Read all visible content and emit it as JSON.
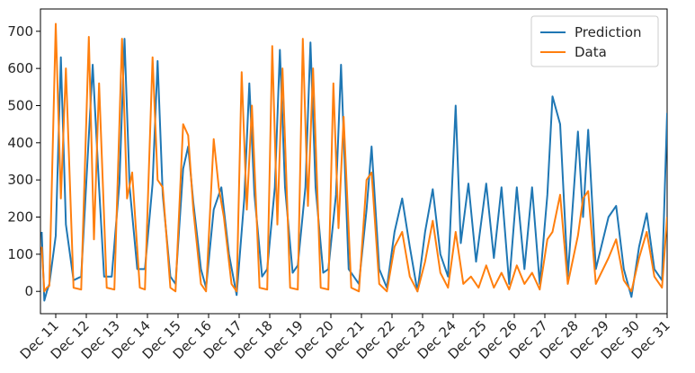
{
  "chart_data": {
    "type": "line",
    "title": "",
    "xlabel": "",
    "ylabel": "",
    "grid": false,
    "legend_position": "upper right",
    "x_range": [
      "Dec 10 12:00",
      "Dec 31 00:00"
    ],
    "ylim": [
      -60,
      760
    ],
    "x_tick_labels": [
      "Dec 11",
      "Dec 12",
      "Dec 13",
      "Dec 14",
      "Dec 15",
      "Dec 16",
      "Dec 17",
      "Dec 18",
      "Dec 19",
      "Dec 20",
      "Dec 21",
      "Dec 22",
      "Dec 23",
      "Dec 24",
      "Dec 25",
      "Dec 26",
      "Dec 27",
      "Dec 28",
      "Dec 29",
      "Dec 30",
      "Dec 31"
    ],
    "y_ticks": [
      0,
      100,
      200,
      300,
      400,
      500,
      600,
      700
    ],
    "series": [
      {
        "name": "Prediction",
        "color": "#1f77b4",
        "values": [
          [
            "Dec 10 13:00",
            160
          ],
          [
            "Dec 10 15:00",
            -25
          ],
          [
            "Dec 10 17:00",
            0
          ],
          [
            "Dec 10 19:00",
            20
          ],
          [
            "Dec 11 00:00",
            150
          ],
          [
            "Dec 11 04:00",
            630
          ],
          [
            "Dec 11 08:00",
            180
          ],
          [
            "Dec 11 14:00",
            30
          ],
          [
            "Dec 11 20:00",
            40
          ],
          [
            "Dec 12 05:00",
            610
          ],
          [
            "Dec 12 10:00",
            280
          ],
          [
            "Dec 12 14:00",
            40
          ],
          [
            "Dec 12 20:00",
            40
          ],
          [
            "Dec 13 02:00",
            290
          ],
          [
            "Dec 13 06:00",
            680
          ],
          [
            "Dec 13 10:00",
            280
          ],
          [
            "Dec 13 16:00",
            60
          ],
          [
            "Dec 13 22:00",
            60
          ],
          [
            "Dec 14 04:00",
            290
          ],
          [
            "Dec 14 08:00",
            620
          ],
          [
            "Dec 14 12:00",
            260
          ],
          [
            "Dec 14 18:00",
            40
          ],
          [
            "Dec 14 22:00",
            20
          ],
          [
            "Dec 15 04:00",
            330
          ],
          [
            "Dec 15 08:00",
            390
          ],
          [
            "Dec 15 12:00",
            240
          ],
          [
            "Dec 15 18:00",
            60
          ],
          [
            "Dec 15 22:00",
            10
          ],
          [
            "Dec 16 04:00",
            220
          ],
          [
            "Dec 16 10:00",
            280
          ],
          [
            "Dec 16 16:00",
            100
          ],
          [
            "Dec 16 22:00",
            -10
          ],
          [
            "Dec 17 04:00",
            250
          ],
          [
            "Dec 17 08:00",
            560
          ],
          [
            "Dec 17 12:00",
            260
          ],
          [
            "Dec 17 18:00",
            40
          ],
          [
            "Dec 17 22:00",
            60
          ],
          [
            "Dec 18 04:00",
            280
          ],
          [
            "Dec 18 08:00",
            650
          ],
          [
            "Dec 18 12:00",
            280
          ],
          [
            "Dec 18 18:00",
            50
          ],
          [
            "Dec 18 22:00",
            70
          ],
          [
            "Dec 19 04:00",
            280
          ],
          [
            "Dec 19 08:00",
            670
          ],
          [
            "Dec 19 12:00",
            280
          ],
          [
            "Dec 19 18:00",
            50
          ],
          [
            "Dec 19 22:00",
            60
          ],
          [
            "Dec 20 04:00",
            260
          ],
          [
            "Dec 20 08:00",
            610
          ],
          [
            "Dec 20 14:00",
            60
          ],
          [
            "Dec 20 22:00",
            20
          ],
          [
            "Dec 21 04:00",
            220
          ],
          [
            "Dec 21 08:00",
            390
          ],
          [
            "Dec 21 14:00",
            60
          ],
          [
            "Dec 21 20:00",
            10
          ],
          [
            "Dec 22 02:00",
            160
          ],
          [
            "Dec 22 08:00",
            250
          ],
          [
            "Dec 22 14:00",
            120
          ],
          [
            "Dec 22 20:00",
            0
          ],
          [
            "Dec 23 02:00",
            160
          ],
          [
            "Dec 23 08:00",
            275
          ],
          [
            "Dec 23 14:00",
            100
          ],
          [
            "Dec 23 20:00",
            40
          ],
          [
            "Dec 24 02:00",
            500
          ],
          [
            "Dec 24 06:00",
            130
          ],
          [
            "Dec 24 12:00",
            290
          ],
          [
            "Dec 24 18:00",
            80
          ],
          [
            "Dec 25 02:00",
            290
          ],
          [
            "Dec 25 08:00",
            90
          ],
          [
            "Dec 25 14:00",
            280
          ],
          [
            "Dec 25 20:00",
            20
          ],
          [
            "Dec 26 02:00",
            280
          ],
          [
            "Dec 26 08:00",
            60
          ],
          [
            "Dec 26 14:00",
            280
          ],
          [
            "Dec 26 20:00",
            20
          ],
          [
            "Dec 27 02:00",
            260
          ],
          [
            "Dec 27 06:00",
            525
          ],
          [
            "Dec 27 12:00",
            450
          ],
          [
            "Dec 27 18:00",
            40
          ],
          [
            "Dec 28 02:00",
            430
          ],
          [
            "Dec 28 06:00",
            200
          ],
          [
            "Dec 28 10:00",
            435
          ],
          [
            "Dec 28 16:00",
            60
          ],
          [
            "Dec 29 02:00",
            200
          ],
          [
            "Dec 29 08:00",
            230
          ],
          [
            "Dec 29 14:00",
            60
          ],
          [
            "Dec 29 20:00",
            -15
          ],
          [
            "Dec 30 02:00",
            120
          ],
          [
            "Dec 30 08:00",
            210
          ],
          [
            "Dec 30 14:00",
            60
          ],
          [
            "Dec 30 20:00",
            30
          ],
          [
            "Dec 31 00:00",
            480
          ]
        ]
      },
      {
        "name": "Data",
        "color": "#ff7f0e",
        "values": [
          [
            "Dec 10 13:00",
            120
          ],
          [
            "Dec 10 15:00",
            0
          ],
          [
            "Dec 10 17:00",
            10
          ],
          [
            "Dec 10 19:00",
            15
          ],
          [
            "Dec 11 00:00",
            720
          ],
          [
            "Dec 11 04:00",
            250
          ],
          [
            "Dec 11 08:00",
            600
          ],
          [
            "Dec 11 14:00",
            10
          ],
          [
            "Dec 11 20:00",
            5
          ],
          [
            "Dec 12 02:00",
            685
          ],
          [
            "Dec 12 06:00",
            140
          ],
          [
            "Dec 12 10:00",
            560
          ],
          [
            "Dec 12 16:00",
            10
          ],
          [
            "Dec 12 22:00",
            5
          ],
          [
            "Dec 13 04:00",
            680
          ],
          [
            "Dec 13 08:00",
            250
          ],
          [
            "Dec 13 12:00",
            320
          ],
          [
            "Dec 13 18:00",
            10
          ],
          [
            "Dec 13 22:00",
            5
          ],
          [
            "Dec 14 04:00",
            630
          ],
          [
            "Dec 14 08:00",
            300
          ],
          [
            "Dec 14 12:00",
            280
          ],
          [
            "Dec 14 18:00",
            10
          ],
          [
            "Dec 14 22:00",
            0
          ],
          [
            "Dec 15 04:00",
            450
          ],
          [
            "Dec 15 08:00",
            420
          ],
          [
            "Dec 15 12:00",
            220
          ],
          [
            "Dec 15 18:00",
            20
          ],
          [
            "Dec 15 22:00",
            0
          ],
          [
            "Dec 16 04:00",
            410
          ],
          [
            "Dec 16 08:00",
            280
          ],
          [
            "Dec 16 12:00",
            200
          ],
          [
            "Dec 16 18:00",
            20
          ],
          [
            "Dec 16 22:00",
            0
          ],
          [
            "Dec 17 02:00",
            590
          ],
          [
            "Dec 17 06:00",
            220
          ],
          [
            "Dec 17 10:00",
            500
          ],
          [
            "Dec 17 16:00",
            10
          ],
          [
            "Dec 17 22:00",
            5
          ],
          [
            "Dec 18 02:00",
            660
          ],
          [
            "Dec 18 06:00",
            180
          ],
          [
            "Dec 18 10:00",
            600
          ],
          [
            "Dec 18 16:00",
            10
          ],
          [
            "Dec 18 22:00",
            5
          ],
          [
            "Dec 19 02:00",
            680
          ],
          [
            "Dec 19 06:00",
            230
          ],
          [
            "Dec 19 10:00",
            600
          ],
          [
            "Dec 19 16:00",
            10
          ],
          [
            "Dec 19 22:00",
            5
          ],
          [
            "Dec 20 02:00",
            560
          ],
          [
            "Dec 20 06:00",
            170
          ],
          [
            "Dec 20 10:00",
            470
          ],
          [
            "Dec 20 16:00",
            10
          ],
          [
            "Dec 20 22:00",
            0
          ],
          [
            "Dec 21 04:00",
            300
          ],
          [
            "Dec 21 08:00",
            320
          ],
          [
            "Dec 21 14:00",
            20
          ],
          [
            "Dec 21 20:00",
            0
          ],
          [
            "Dec 22 02:00",
            120
          ],
          [
            "Dec 22 08:00",
            160
          ],
          [
            "Dec 22 14:00",
            40
          ],
          [
            "Dec 22 20:00",
            0
          ],
          [
            "Dec 23 02:00",
            80
          ],
          [
            "Dec 23 08:00",
            190
          ],
          [
            "Dec 23 14:00",
            50
          ],
          [
            "Dec 23 20:00",
            10
          ],
          [
            "Dec 24 02:00",
            160
          ],
          [
            "Dec 24 08:00",
            20
          ],
          [
            "Dec 24 14:00",
            40
          ],
          [
            "Dec 24 20:00",
            10
          ],
          [
            "Dec 25 02:00",
            70
          ],
          [
            "Dec 25 08:00",
            10
          ],
          [
            "Dec 25 14:00",
            50
          ],
          [
            "Dec 25 20:00",
            5
          ],
          [
            "Dec 26 02:00",
            70
          ],
          [
            "Dec 26 08:00",
            20
          ],
          [
            "Dec 26 14:00",
            50
          ],
          [
            "Dec 26 20:00",
            5
          ],
          [
            "Dec 27 02:00",
            140
          ],
          [
            "Dec 27 06:00",
            160
          ],
          [
            "Dec 27 12:00",
            260
          ],
          [
            "Dec 27 18:00",
            20
          ],
          [
            "Dec 28 02:00",
            150
          ],
          [
            "Dec 28 06:00",
            250
          ],
          [
            "Dec 28 10:00",
            270
          ],
          [
            "Dec 28 16:00",
            20
          ],
          [
            "Dec 29 02:00",
            90
          ],
          [
            "Dec 29 08:00",
            140
          ],
          [
            "Dec 29 14:00",
            30
          ],
          [
            "Dec 29 20:00",
            0
          ],
          [
            "Dec 30 02:00",
            90
          ],
          [
            "Dec 30 08:00",
            160
          ],
          [
            "Dec 30 14:00",
            40
          ],
          [
            "Dec 30 20:00",
            10
          ],
          [
            "Dec 31 00:00",
            200
          ]
        ]
      }
    ]
  }
}
